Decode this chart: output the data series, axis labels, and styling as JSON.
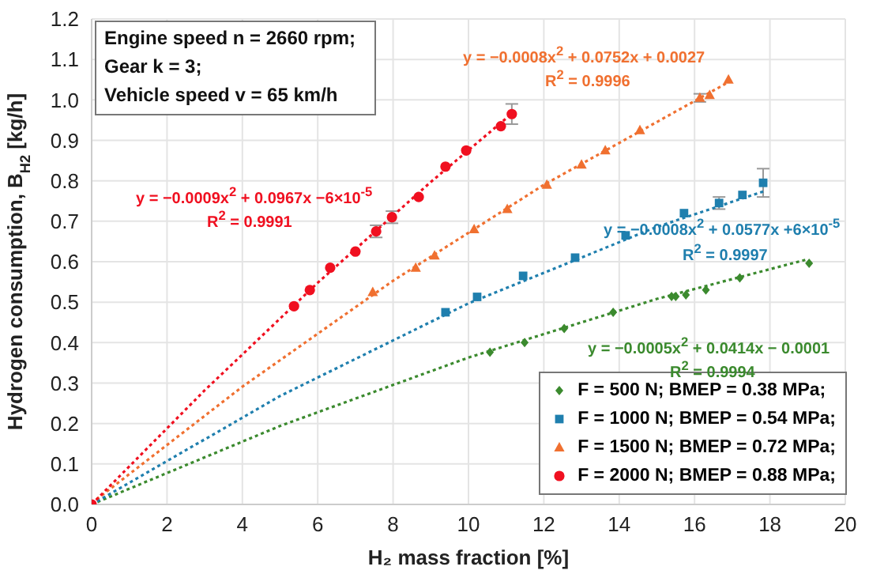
{
  "chart_data": {
    "type": "scatter",
    "xlabel": "H₂ mass fraction [%]",
    "ylabel": "Hydrogen consumption, B$_{H2}$ [kg/h]",
    "xlim": [
      0,
      20
    ],
    "xticks": [
      0,
      2,
      4,
      6,
      8,
      10,
      12,
      14,
      16,
      18,
      20
    ],
    "ylim": [
      0,
      1.2
    ],
    "yticks": [
      {
        "value": 0,
        "label": "0.0"
      },
      {
        "value": 0.1,
        "label": "0.1"
      },
      {
        "value": 0.2,
        "label": "0.2"
      },
      {
        "value": 0.3,
        "label": "0.3"
      },
      {
        "value": 0.4,
        "label": "0.4"
      },
      {
        "value": 0.5,
        "label": "0.5"
      },
      {
        "value": 0.6,
        "label": "0.6"
      },
      {
        "value": 0.7,
        "label": "0.7"
      },
      {
        "value": 0.8,
        "label": "0.8"
      },
      {
        "value": 0.9,
        "label": "0.9"
      },
      {
        "value": 1,
        "label": "1.0"
      },
      {
        "value": 1.1,
        "label": "1.1"
      },
      {
        "value": 1.2,
        "label": "1.2"
      }
    ],
    "grid": true,
    "legend": "bottom right",
    "annotations": [
      "Engine speed n = 2660 rpm;",
      "Gear k = 3;",
      "Vehicle speed v = 65 km/h",
      "y = −0.0009x$^{2}$ + 0.0967x −6×10$^{-5}$",
      "R$^{2}$ = 0.9991",
      "y = −0.0008x$^{2}$ + 0.0752x + 0.0027",
      "R$^{2}$ = 0.9996",
      "y = −0.0008x$^{2}$ + 0.0577x +6×10$^{-5}$",
      "R$^{2}$ = 0.9997",
      "y = −0.0005x$^{2}$ + 0.0414x − 0.0001",
      "R$^{2}$ = 0.9994"
    ],
    "series": [
      {
        "name": "F = 500 N; BMEP = 0.38 MPa;",
        "color": "#3b8a2e",
        "marker": "diamond",
        "x": [
          10.57,
          11.49,
          12.54,
          13.84,
          15.39,
          15.5,
          15.77,
          16.3,
          17.2,
          19.04
        ],
        "values": [
          0.376,
          0.4,
          0.435,
          0.475,
          0.514,
          0.514,
          0.518,
          0.53,
          0.56,
          0.596
        ]
      },
      {
        "name": "F = 1000 N; BMEP = 0.54 MPa;",
        "color": "#1f7fae",
        "marker": "square",
        "x": [
          9.39,
          10.23,
          11.45,
          12.83,
          14.17,
          15.72,
          16.65,
          17.27,
          17.82
        ],
        "values": [
          0.475,
          0.513,
          0.565,
          0.61,
          0.665,
          0.72,
          0.745,
          0.765,
          0.795
        ],
        "errors": [
          null,
          null,
          null,
          null,
          null,
          null,
          0.015,
          null,
          0.035
        ]
      },
      {
        "name": "F = 1500 N; BMEP = 0.72 MPa;",
        "color": "#f07030",
        "marker": "triangle",
        "x": [
          7.46,
          8.6,
          9.1,
          10.15,
          11.03,
          12.08,
          13.0,
          13.63,
          14.55,
          16.14,
          16.4,
          16.9
        ],
        "values": [
          0.525,
          0.585,
          0.615,
          0.68,
          0.73,
          0.79,
          0.84,
          0.875,
          0.925,
          1.005,
          1.012,
          1.05
        ],
        "errors": [
          null,
          null,
          null,
          null,
          null,
          null,
          null,
          null,
          null,
          0.01,
          null,
          null
        ]
      },
      {
        "name": "F = 2000 N; BMEP = 0.88 MPa;",
        "color": "#f01020",
        "marker": "circle",
        "x": [
          0,
          5.37,
          5.79,
          6.33,
          7.0,
          7.55,
          7.97,
          8.68,
          9.39,
          9.94,
          10.86,
          11.15
        ],
        "values": [
          0,
          0.49,
          0.53,
          0.585,
          0.625,
          0.675,
          0.71,
          0.76,
          0.835,
          0.875,
          0.935,
          0.965
        ],
        "errors": [
          null,
          null,
          null,
          null,
          null,
          0.015,
          0.015,
          null,
          null,
          null,
          null,
          0.025
        ]
      },
      {
        "type": "line",
        "color": "#3b8a2e",
        "line_style": "dotted",
        "marker": "none",
        "x": [
          0,
          5,
          10,
          15,
          19
        ],
        "values": [
          0,
          0.194,
          0.363,
          0.508,
          0.606
        ]
      },
      {
        "type": "line",
        "color": "#1f7fae",
        "line_style": "dotted",
        "marker": "none",
        "x": [
          0,
          5,
          10,
          15,
          17.9
        ],
        "values": [
          0,
          0.268,
          0.497,
          0.686,
          0.776
        ]
      },
      {
        "type": "line",
        "color": "#f07030",
        "line_style": "dotted",
        "marker": "none",
        "x": [
          0,
          4,
          8,
          12,
          17
        ],
        "values": [
          0.003,
          0.291,
          0.553,
          0.79,
          1.049
        ]
      },
      {
        "type": "line",
        "color": "#f01020",
        "line_style": "dotted",
        "marker": "none",
        "x": [
          0,
          3,
          6,
          9,
          11.2
        ],
        "values": [
          0,
          0.282,
          0.548,
          0.797,
          0.97
        ]
      }
    ]
  }
}
